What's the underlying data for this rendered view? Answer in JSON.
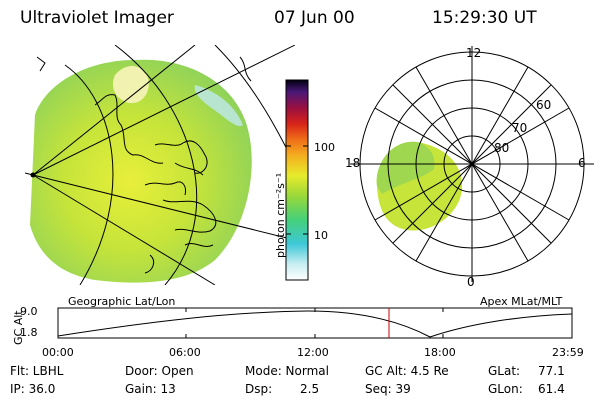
{
  "header": {
    "title": "Ultraviolet Imager",
    "date": "07 Jun 00",
    "time": "15:29:30 UT"
  },
  "left_panel": {
    "caption": "Geographic Lat/Lon"
  },
  "right_panel": {
    "caption": "Apex MLat/MLT",
    "mlt_labels": {
      "top": "12",
      "left": "18",
      "right": "6",
      "bottom": "0"
    },
    "lat_labels": [
      "60",
      "70",
      "80"
    ]
  },
  "colorbar": {
    "unit_label": "photon cm⁻²s⁻¹",
    "ticks": [
      "100",
      "10"
    ],
    "scale": "log"
  },
  "altitude_plot": {
    "ylabel": "GC Alt",
    "y_ticks": [
      "9.0",
      "1.8"
    ],
    "x_ticks": [
      "00:00",
      "06:00",
      "12:00",
      "18:00",
      "23:59"
    ],
    "current_time_marker": "15:29:30",
    "marker_color": "#cc0000"
  },
  "info": {
    "flt": "Flt: LBHL",
    "ip": "IP: 36.0",
    "door": "Door: Open",
    "gain": "Gain: 13",
    "mode": "Mode: Normal",
    "dsp_label": "Dsp:",
    "dsp_value": "2.5",
    "gcalt": "GC Alt: 4.5 Re",
    "seq": "Seq: 39",
    "glat_label": "GLat:",
    "glat_value": "77.1",
    "glon_label": "GLon:",
    "glon_value": "61.4"
  }
}
